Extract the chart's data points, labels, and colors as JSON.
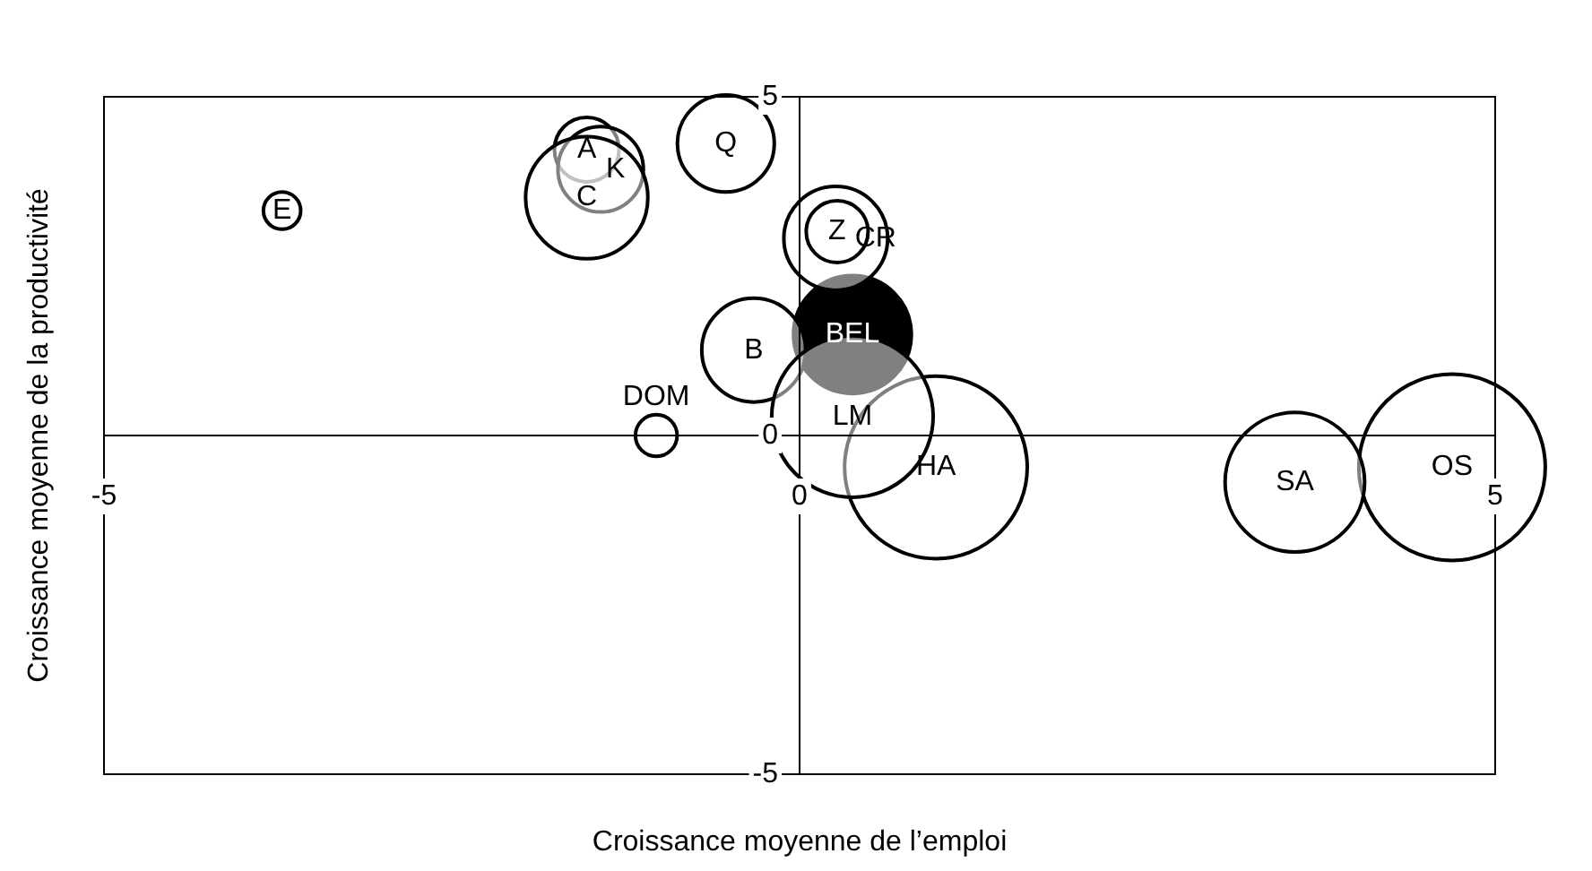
{
  "chart_data": {
    "type": "bubble",
    "xlabel": "Croissance moyenne de l’emploi",
    "ylabel": "Croissance moyenne de la productivité",
    "xlim": [
      -5,
      5
    ],
    "ylim": [
      -5,
      5
    ],
    "xticks": [
      -5,
      0,
      5
    ],
    "yticks": [
      -5,
      0,
      5
    ],
    "grid": false,
    "legend": false,
    "series": [
      {
        "name": "E",
        "color": "#ffffff",
        "x": [
          -3.72
        ],
        "values": [
          3.32
        ],
        "sizes": [
          0.04
        ]
      },
      {
        "name": "C",
        "color": "#ffffff",
        "x": [
          -1.53
        ],
        "values": [
          3.51
        ],
        "sizes": [
          0.43
        ]
      },
      {
        "name": "K",
        "color": "#ffffff",
        "x": [
          -1.43
        ],
        "values": [
          3.93
        ],
        "sizes": [
          0.21
        ]
      },
      {
        "name": "A",
        "color": "#ffffff",
        "x": [
          -1.53
        ],
        "values": [
          4.22
        ],
        "sizes": [
          0.12
        ]
      },
      {
        "name": "Q",
        "color": "#ffffff",
        "x": [
          -0.53
        ],
        "values": [
          4.31
        ],
        "sizes": [
          0.27
        ]
      },
      {
        "name": "Z",
        "color": "#ffffff",
        "x": [
          0.27
        ],
        "values": [
          3.01
        ],
        "sizes": [
          0.11
        ]
      },
      {
        "name": "CR",
        "color": "#ffffff",
        "x": [
          0.26
        ],
        "values": [
          2.91
        ],
        "sizes": [
          0.31
        ]
      },
      {
        "name": "LM",
        "color": "#ffffff",
        "x": [
          0.38
        ],
        "values": [
          0.28
        ],
        "sizes": [
          0.75
        ]
      },
      {
        "name": "HA",
        "color": "#ffffff",
        "x": [
          0.98
        ],
        "values": [
          -0.47
        ],
        "sizes": [
          0.96
        ]
      },
      {
        "name": "B",
        "color": "#ffffff",
        "x": [
          -0.33
        ],
        "values": [
          1.26
        ],
        "sizes": [
          0.31
        ]
      },
      {
        "name": "DOM",
        "color": "#ffffff",
        "x": [
          -1.03
        ],
        "values": [
          0.0
        ],
        "sizes": [
          0.05
        ]
      },
      {
        "name": "SA",
        "color": "#ffffff",
        "x": [
          3.56
        ],
        "values": [
          -0.69
        ],
        "sizes": [
          0.56
        ]
      },
      {
        "name": "OS",
        "color": "#ffffff",
        "x": [
          4.69
        ],
        "values": [
          -0.47
        ],
        "sizes": [
          1.0
        ]
      },
      {
        "name": "BEL",
        "color": "#000000",
        "x": [
          0.38
        ],
        "values": [
          1.49
        ],
        "sizes": [
          0.4
        ]
      }
    ]
  }
}
